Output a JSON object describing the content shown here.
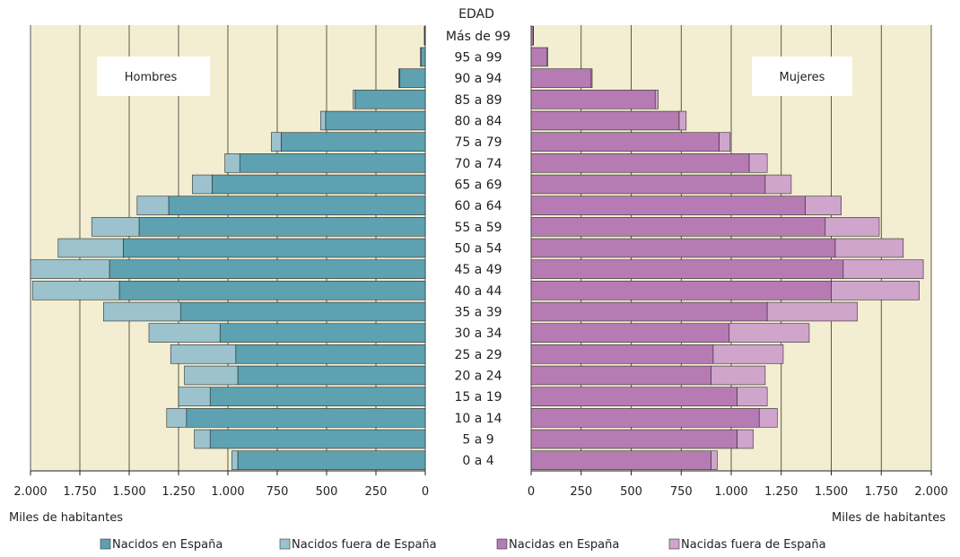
{
  "chart_data": {
    "type": "bar",
    "subtype": "population-pyramid",
    "age_axis_title": "EDAD",
    "categories": [
      "Más de 99",
      "95 a 99",
      "90 a 94",
      "85 a 89",
      "80 a 84",
      "75 a 79",
      "70 a 74",
      "65 a 69",
      "60 a 64",
      "55 a 59",
      "50 a 54",
      "45 a 49",
      "40 a 44",
      "35 a 39",
      "30 a 34",
      "25 a 29",
      "20 a 24",
      "15 a 19",
      "10 a 14",
      "5 a 9",
      "0 a 4"
    ],
    "unit_label": "Miles de habitantes",
    "xlim": [
      0,
      2000
    ],
    "ticks": [
      0,
      250,
      500,
      750,
      1000,
      1250,
      1500,
      1750,
      2000
    ],
    "tick_labels": [
      "0",
      "250",
      "500",
      "750",
      "1.000",
      "1.250",
      "1.500",
      "1.750",
      "2.000"
    ],
    "grid": true,
    "legend_position": "bottom",
    "colors": {
      "background": "#f3eed1",
      "men_native": "#5ea1b1",
      "men_foreign": "#9cc3cd",
      "women_native": "#b67bb2",
      "women_foreign": "#cfa5cc",
      "grid": "#333333"
    },
    "panels": [
      {
        "label": "Hombres",
        "series": [
          {
            "name": "Nacidos en España",
            "values": [
              3,
              20,
              130,
              355,
              505,
              730,
              940,
              1080,
              1300,
              1450,
              1530,
              1600,
              1550,
              1240,
              1040,
              960,
              950,
              1090,
              1210,
              1090,
              950
            ]
          },
          {
            "name": "Nacidos fuera de España",
            "values": [
              2,
              5,
              5,
              10,
              25,
              50,
              75,
              100,
              160,
              240,
              330,
              400,
              440,
              390,
              360,
              330,
              270,
              160,
              100,
              80,
              30
            ]
          }
        ]
      },
      {
        "label": "Mujeres",
        "series": [
          {
            "name": "Nacidas en España",
            "values": [
              10,
              80,
              300,
              620,
              740,
              940,
              1090,
              1170,
              1370,
              1470,
              1520,
              1560,
              1500,
              1180,
              990,
              910,
              900,
              1030,
              1140,
              1030,
              900
            ]
          },
          {
            "name": "Nacidas fuera de España",
            "values": [
              2,
              3,
              5,
              15,
              35,
              55,
              90,
              130,
              180,
              270,
              340,
              400,
              440,
              450,
              400,
              350,
              270,
              150,
              90,
              80,
              30
            ]
          }
        ]
      }
    ]
  }
}
